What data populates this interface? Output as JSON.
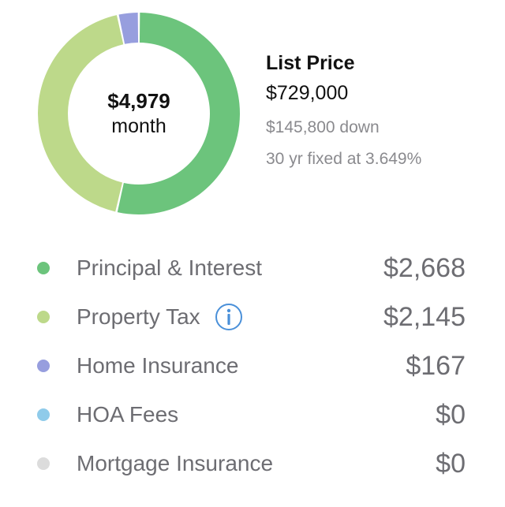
{
  "summary": {
    "monthly_amount": "$4,979",
    "monthly_unit": "month",
    "list_price_label": "List Price",
    "list_price_value": "$729,000",
    "down_payment": "$145,800 down",
    "loan_terms": "30 yr fixed at 3.649%"
  },
  "breakdown": [
    {
      "label": "Principal & Interest",
      "value": "$2,668",
      "amount": 2668,
      "color": "#6cc47c",
      "info": false
    },
    {
      "label": "Property Tax",
      "value": "$2,145",
      "amount": 2145,
      "color": "#bdd98a",
      "info": true
    },
    {
      "label": "Home Insurance",
      "value": "$167",
      "amount": 167,
      "color": "#979ede",
      "info": false
    },
    {
      "label": "HOA Fees",
      "value": "$0",
      "amount": 0,
      "color": "#8fcbea",
      "info": false
    },
    {
      "label": "Mortgage Insurance",
      "value": "$0",
      "amount": 0,
      "color": "#dcdcdc",
      "info": false
    }
  ],
  "icons": {
    "info": "info-circle-icon",
    "info_color": "#4a90d9"
  }
}
